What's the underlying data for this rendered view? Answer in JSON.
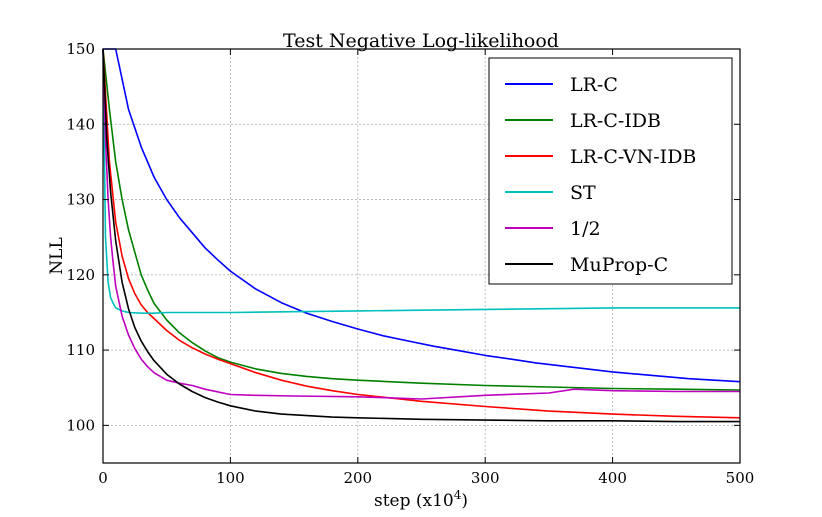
{
  "chart_data": {
    "type": "line",
    "title": "Test Negative Log-likelihood",
    "xlabel": "step (x10",
    "xlabel_exp": "4",
    "xlabel_close": ")",
    "ylabel": "NLL",
    "xlim": [
      0,
      500
    ],
    "ylim": [
      95,
      150
    ],
    "xticks": [
      "0",
      "100",
      "200",
      "300",
      "400",
      "500"
    ],
    "yticks": [
      "100",
      "110",
      "120",
      "130",
      "140",
      "150"
    ],
    "grid": true,
    "legend_position": "top-right",
    "series": [
      {
        "name": "LR-C",
        "color": "#0000ff",
        "x": [
          0,
          10,
          20,
          30,
          40,
          50,
          60,
          70,
          80,
          90,
          100,
          120,
          140,
          160,
          180,
          200,
          220,
          240,
          260,
          280,
          300,
          320,
          340,
          360,
          380,
          400,
          420,
          440,
          460,
          480,
          500
        ],
        "y": [
          150,
          150,
          142,
          137,
          133,
          130,
          127.6,
          125.6,
          123.6,
          122,
          120.5,
          118.1,
          116.3,
          114.9,
          113.8,
          112.8,
          111.9,
          111.2,
          110.5,
          109.9,
          109.3,
          108.8,
          108.3,
          107.9,
          107.5,
          107.1,
          106.8,
          106.5,
          106.2,
          106,
          105.8
        ]
      },
      {
        "name": "LR-C-IDB",
        "color": "#008000",
        "x": [
          0,
          5,
          10,
          15,
          20,
          25,
          30,
          35,
          40,
          50,
          60,
          70,
          80,
          90,
          100,
          120,
          140,
          160,
          180,
          200,
          250,
          300,
          350,
          400,
          450,
          500
        ],
        "y": [
          150,
          142,
          135,
          130,
          126,
          123,
          120,
          118,
          116.2,
          114,
          112.3,
          111,
          109.9,
          109,
          108.4,
          107.5,
          106.9,
          106.5,
          106.2,
          106,
          105.6,
          105.3,
          105.1,
          104.9,
          104.8,
          104.7
        ]
      },
      {
        "name": "LR-C-VN-IDB",
        "color": "#ff0000",
        "x": [
          0,
          5,
          10,
          15,
          20,
          25,
          30,
          35,
          40,
          50,
          60,
          70,
          80,
          90,
          100,
          120,
          140,
          160,
          180,
          200,
          250,
          300,
          350,
          400,
          450,
          500
        ],
        "y": [
          150,
          135,
          127,
          122.5,
          119.5,
          117.5,
          116,
          115,
          114.2,
          112.6,
          111.3,
          110.3,
          109.5,
          108.8,
          108.2,
          107,
          106,
          105.2,
          104.6,
          104.1,
          103.2,
          102.5,
          101.9,
          101.5,
          101.2,
          101
        ]
      },
      {
        "name": "ST",
        "color": "#00bfbf",
        "x": [
          0,
          2,
          4,
          6,
          8,
          10,
          15,
          20,
          30,
          40,
          50,
          60,
          80,
          100,
          150,
          200,
          250,
          300,
          350,
          400,
          450,
          500
        ],
        "y": [
          150,
          125,
          119,
          117,
          116.2,
          115.6,
          115.2,
          115,
          114.9,
          114.9,
          115,
          115,
          115,
          115,
          115.1,
          115.2,
          115.3,
          115.4,
          115.5,
          115.6,
          115.6,
          115.6
        ]
      },
      {
        "name": "1/2",
        "color": "#bf00bf",
        "x": [
          0,
          2,
          4,
          6,
          8,
          10,
          15,
          20,
          25,
          30,
          35,
          40,
          50,
          60,
          70,
          80,
          100,
          120,
          150,
          200,
          250,
          300,
          350,
          370,
          400,
          450,
          500
        ],
        "y": [
          150,
          138,
          130,
          125,
          121.5,
          118.5,
          114.5,
          112,
          110.2,
          108.8,
          107.8,
          107,
          106,
          105.6,
          105.3,
          104.8,
          104.1,
          104,
          103.9,
          103.8,
          103.5,
          104,
          104.3,
          104.8,
          104.6,
          104.5,
          104.5
        ]
      },
      {
        "name": "MuProp-C",
        "color": "#000000",
        "x": [
          0,
          3,
          6,
          10,
          15,
          20,
          25,
          30,
          35,
          40,
          50,
          60,
          70,
          80,
          90,
          100,
          120,
          140,
          160,
          180,
          200,
          250,
          300,
          350,
          400,
          450,
          500
        ],
        "y": [
          150,
          138,
          131,
          124.5,
          119,
          115.5,
          113,
          111.2,
          109.8,
          108.6,
          106.8,
          105.5,
          104.5,
          103.7,
          103.1,
          102.6,
          101.9,
          101.5,
          101.3,
          101.1,
          101,
          100.8,
          100.7,
          100.6,
          100.6,
          100.5,
          100.5
        ]
      }
    ]
  }
}
